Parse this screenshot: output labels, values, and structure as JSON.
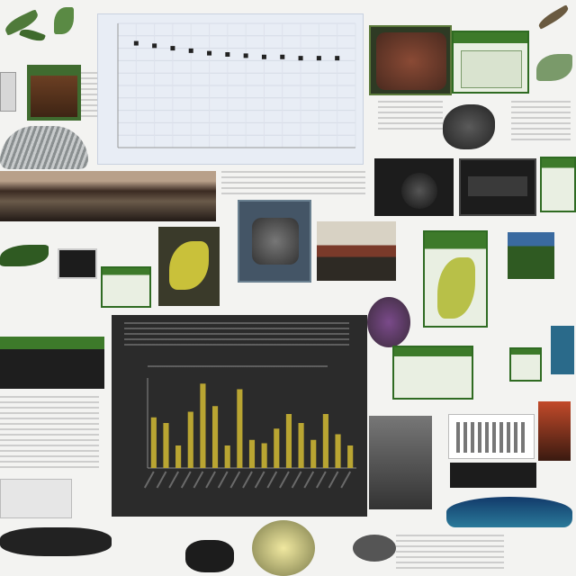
{
  "collage": {
    "tiles": [
      {
        "name": "scatter-chart-panel"
      },
      {
        "name": "bar-chart-panel"
      },
      {
        "name": "rock-photo"
      },
      {
        "name": "green-monitor-screen"
      },
      {
        "name": "leaf-specimen-photo"
      },
      {
        "name": "landscape-photo"
      },
      {
        "name": "dark-specimen-photo"
      }
    ]
  },
  "colors": {
    "bar_fill": "#b9a532",
    "bar_panel_bg": "#2b2b2b",
    "scatter_point": "#222222",
    "scatter_bg": "#e8edf5",
    "screen_green": "#3d7a2a"
  },
  "chart_data": [
    {
      "type": "scatter",
      "title": "",
      "xlabel": "",
      "ylabel": "",
      "x": [
        1,
        2,
        3,
        4,
        5,
        6,
        7,
        8,
        9,
        10,
        11,
        12
      ],
      "values": [
        8.4,
        8.2,
        8.0,
        7.8,
        7.6,
        7.5,
        7.4,
        7.3,
        7.3,
        7.2,
        7.2,
        7.2
      ],
      "ylim": [
        0,
        10
      ],
      "grid": true
    },
    {
      "type": "bar",
      "title": "",
      "xlabel": "",
      "ylabel": "",
      "categories": [
        "",
        "",
        "",
        "",
        "",
        "",
        "",
        "",
        "",
        "",
        "",
        "",
        "",
        "",
        "",
        "",
        ""
      ],
      "values": [
        45,
        40,
        20,
        50,
        75,
        55,
        20,
        70,
        25,
        22,
        35,
        48,
        40,
        25,
        48,
        30,
        20
      ],
      "ylim": [
        0,
        80
      ],
      "grid": false
    }
  ]
}
